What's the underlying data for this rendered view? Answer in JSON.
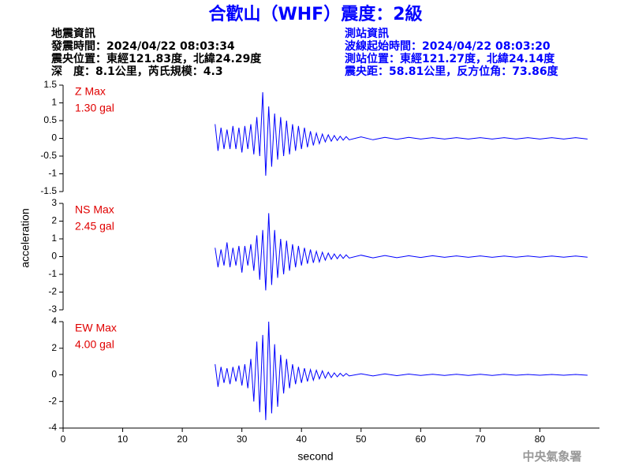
{
  "header": {
    "title": "合歡山（WHF）震度：2級",
    "event_info": [
      "地震資訊",
      "發震時間：2024/04/22 08:03:34",
      "震央位置：東經121.83度，北緯24.29度",
      "深　度：8.1公里，芮氏規模：4.3"
    ],
    "station_info": [
      "測站資訊",
      "波線起始時間：2024/04/22 08:03:20",
      "測站位置：東經121.27度，北緯24.14度",
      "震央距：58.81公里，反方位角：73.86度"
    ]
  },
  "x_label": "second",
  "y_label": "acceleration",
  "credit": "中央氣象署",
  "chart_data": [
    {
      "type": "line",
      "label": "Z Max",
      "max_label": "1.30 gal",
      "color": "#0000ff",
      "xlim": [
        0,
        90
      ],
      "ylim": [
        -1.5,
        1.5
      ],
      "yticks": [
        -1.5,
        -1,
        -0.5,
        0,
        0.5,
        1,
        1.5
      ],
      "x": [
        25.5,
        26,
        26.5,
        27,
        27.5,
        28,
        28.5,
        29,
        29.5,
        30,
        30.5,
        31,
        31.5,
        32,
        32.5,
        33,
        33.5,
        34,
        34.5,
        35,
        35.5,
        36,
        36.5,
        37,
        37.5,
        38,
        38.5,
        39,
        39.5,
        40,
        40.5,
        41,
        41.5,
        42,
        42.5,
        43,
        43.5,
        44,
        44.5,
        45,
        45.5,
        46,
        46.5,
        47,
        47.5,
        48,
        50,
        52,
        54,
        56,
        58,
        60,
        62,
        64,
        66,
        68,
        70,
        72,
        74,
        76,
        78,
        80,
        82,
        84,
        86,
        88
      ],
      "values": [
        0.4,
        -0.35,
        0.3,
        -0.3,
        0.25,
        -0.3,
        0.35,
        -0.3,
        0.3,
        -0.4,
        0.35,
        -0.3,
        0.4,
        -0.45,
        0.6,
        -0.5,
        1.3,
        -1.05,
        0.9,
        -0.8,
        0.7,
        -0.6,
        0.6,
        -0.5,
        0.5,
        -0.45,
        0.4,
        -0.35,
        0.35,
        -0.3,
        0.3,
        -0.25,
        0.2,
        -0.2,
        0.15,
        -0.15,
        0.12,
        -0.1,
        0.1,
        -0.08,
        0.08,
        -0.06,
        0.06,
        -0.05,
        0.05,
        -0.04,
        0.04,
        -0.04,
        0.03,
        -0.03,
        0.03,
        -0.02,
        0.02,
        -0.02,
        0.02,
        -0.02,
        0.02,
        -0.02,
        0.02,
        -0.02,
        0.02,
        -0.02,
        0.02,
        -0.02,
        0.02,
        -0.02
      ]
    },
    {
      "type": "line",
      "label": "NS Max",
      "max_label": "2.45 gal",
      "color": "#0000ff",
      "xlim": [
        0,
        90
      ],
      "ylim": [
        -3,
        3
      ],
      "yticks": [
        -3,
        -2,
        -1,
        0,
        1,
        2,
        3
      ],
      "x": [
        25.5,
        26,
        26.5,
        27,
        27.5,
        28,
        28.5,
        29,
        29.5,
        30,
        30.5,
        31,
        31.5,
        32,
        32.5,
        33,
        33.5,
        34,
        34.5,
        35,
        35.5,
        36,
        36.5,
        37,
        37.5,
        38,
        38.5,
        39,
        39.5,
        40,
        40.5,
        41,
        41.5,
        42,
        42.5,
        43,
        43.5,
        44,
        44.5,
        45,
        45.5,
        46,
        46.5,
        47,
        47.5,
        48,
        50,
        52,
        54,
        56,
        58,
        60,
        62,
        64,
        66,
        68,
        70,
        72,
        74,
        76,
        78,
        80,
        82,
        84,
        86,
        88
      ],
      "values": [
        0.5,
        -0.6,
        0.4,
        -0.5,
        0.8,
        -0.6,
        0.5,
        -0.5,
        0.6,
        -0.9,
        0.6,
        -0.5,
        0.7,
        -0.8,
        1.2,
        -1.3,
        1.5,
        -1.9,
        2.45,
        -1.6,
        1.5,
        -1.2,
        1.0,
        -1.0,
        0.9,
        -0.8,
        0.7,
        -0.6,
        0.6,
        -0.5,
        0.5,
        -0.4,
        0.4,
        -0.35,
        0.3,
        -0.3,
        0.25,
        -0.2,
        0.2,
        -0.15,
        0.15,
        -0.12,
        0.12,
        -0.1,
        0.1,
        -0.08,
        0.08,
        -0.07,
        0.06,
        -0.06,
        0.05,
        -0.05,
        0.05,
        -0.04,
        0.04,
        -0.04,
        0.04,
        -0.04,
        0.03,
        -0.03,
        0.03,
        -0.03,
        0.03,
        -0.03,
        0.03,
        -0.03
      ]
    },
    {
      "type": "line",
      "label": "EW Max",
      "max_label": "4.00 gal",
      "color": "#0000ff",
      "xlim": [
        0,
        90
      ],
      "ylim": [
        -4,
        4
      ],
      "yticks": [
        -4,
        -2,
        0,
        2,
        4
      ],
      "xticks": [
        0,
        10,
        20,
        30,
        40,
        50,
        60,
        70,
        80
      ],
      "x": [
        25.5,
        26,
        26.5,
        27,
        27.5,
        28,
        28.5,
        29,
        29.5,
        30,
        30.5,
        31,
        31.5,
        32,
        32.5,
        33,
        33.5,
        34,
        34.5,
        35,
        35.5,
        36,
        36.5,
        37,
        37.5,
        38,
        38.5,
        39,
        39.5,
        40,
        40.5,
        41,
        41.5,
        42,
        42.5,
        43,
        43.5,
        44,
        44.5,
        45,
        45.5,
        46,
        46.5,
        47,
        47.5,
        48,
        50,
        52,
        54,
        56,
        58,
        60,
        62,
        64,
        66,
        68,
        70,
        72,
        74,
        76,
        78,
        80,
        82,
        84,
        86,
        88
      ],
      "values": [
        0.8,
        -0.9,
        0.6,
        -0.6,
        0.5,
        -0.7,
        0.6,
        -0.5,
        0.7,
        -0.8,
        0.8,
        -1.0,
        1.2,
        -2.0,
        2.5,
        -2.8,
        3.0,
        -3.4,
        4.0,
        -2.9,
        2.3,
        -2.4,
        1.5,
        -1.4,
        1.2,
        -1.0,
        0.8,
        -0.7,
        0.6,
        -0.6,
        0.5,
        -0.5,
        0.4,
        -0.4,
        0.35,
        -0.3,
        0.3,
        -0.25,
        0.2,
        -0.2,
        0.15,
        -0.15,
        0.12,
        -0.1,
        0.1,
        -0.08,
        0.08,
        -0.08,
        0.07,
        -0.06,
        0.06,
        -0.05,
        0.05,
        -0.05,
        0.04,
        -0.04,
        0.04,
        -0.04,
        0.04,
        -0.03,
        0.03,
        -0.03,
        0.03,
        -0.03,
        0.03,
        -0.03
      ]
    }
  ]
}
